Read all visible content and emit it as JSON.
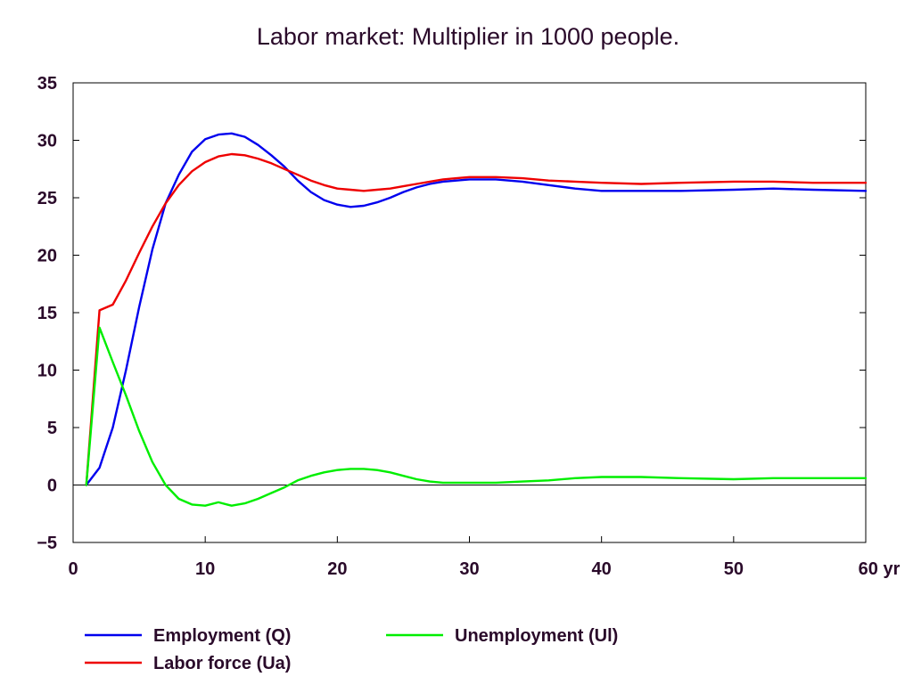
{
  "chart_data": {
    "type": "line",
    "title": "Labor market: Multiplier in 1000 people.",
    "x_unit": "yr",
    "xlim": [
      0,
      60
    ],
    "ylim": [
      -5,
      35
    ],
    "x_ticks": [
      0,
      10,
      20,
      30,
      40,
      50,
      60
    ],
    "y_ticks": [
      35,
      30,
      25,
      20,
      15,
      10,
      5,
      0,
      -5
    ],
    "grid": false,
    "zero_line": true,
    "legend_position": "bottom",
    "series": [
      {
        "name": "Employment (Q)",
        "color": "#0000ee",
        "x": [
          1,
          2,
          3,
          4,
          5,
          6,
          7,
          8,
          9,
          10,
          11,
          12,
          13,
          14,
          15,
          16,
          17,
          18,
          19,
          20,
          21,
          22,
          23,
          24,
          25,
          26,
          27,
          28,
          29,
          30,
          32,
          34,
          36,
          38,
          40,
          43,
          46,
          50,
          53,
          56,
          60
        ],
        "y": [
          0,
          1.5,
          5,
          10,
          15.5,
          20.5,
          24.5,
          27,
          29,
          30.1,
          30.5,
          30.6,
          30.3,
          29.6,
          28.7,
          27.7,
          26.5,
          25.5,
          24.8,
          24.4,
          24.2,
          24.3,
          24.6,
          25,
          25.5,
          25.9,
          26.2,
          26.4,
          26.5,
          26.6,
          26.6,
          26.4,
          26.1,
          25.8,
          25.6,
          25.6,
          25.6,
          25.7,
          25.8,
          25.7,
          25.6
        ]
      },
      {
        "name": "Labor force (Ua)",
        "color": "#ee0000",
        "x": [
          1,
          2,
          3,
          4,
          5,
          6,
          7,
          8,
          9,
          10,
          11,
          12,
          13,
          14,
          15,
          16,
          17,
          18,
          19,
          20,
          21,
          22,
          23,
          24,
          25,
          26,
          27,
          28,
          29,
          30,
          32,
          34,
          36,
          38,
          40,
          43,
          46,
          50,
          53,
          56,
          60
        ],
        "y": [
          0,
          15.2,
          15.7,
          17.8,
          20.2,
          22.5,
          24.5,
          26.1,
          27.3,
          28.1,
          28.6,
          28.8,
          28.7,
          28.4,
          28,
          27.5,
          27,
          26.5,
          26.1,
          25.8,
          25.7,
          25.6,
          25.7,
          25.8,
          26,
          26.2,
          26.4,
          26.6,
          26.7,
          26.8,
          26.8,
          26.7,
          26.5,
          26.4,
          26.3,
          26.2,
          26.3,
          26.4,
          26.4,
          26.3,
          26.3
        ]
      },
      {
        "name": "Unemployment (Ul)",
        "color": "#00ee00",
        "x": [
          1,
          2,
          3,
          4,
          5,
          6,
          7,
          8,
          9,
          10,
          11,
          12,
          13,
          14,
          15,
          16,
          17,
          18,
          19,
          20,
          21,
          22,
          23,
          24,
          25,
          26,
          27,
          28,
          29,
          30,
          32,
          34,
          36,
          38,
          40,
          43,
          46,
          50,
          53,
          56,
          60
        ],
        "y": [
          0,
          13.7,
          10.7,
          7.8,
          4.7,
          2,
          0,
          -1.2,
          -1.7,
          -1.8,
          -1.5,
          -1.8,
          -1.6,
          -1.2,
          -0.7,
          -0.2,
          0.4,
          0.8,
          1.1,
          1.3,
          1.4,
          1.4,
          1.3,
          1.1,
          0.8,
          0.5,
          0.3,
          0.2,
          0.2,
          0.2,
          0.2,
          0.3,
          0.4,
          0.6,
          0.7,
          0.7,
          0.6,
          0.5,
          0.6,
          0.6,
          0.6
        ]
      }
    ]
  }
}
